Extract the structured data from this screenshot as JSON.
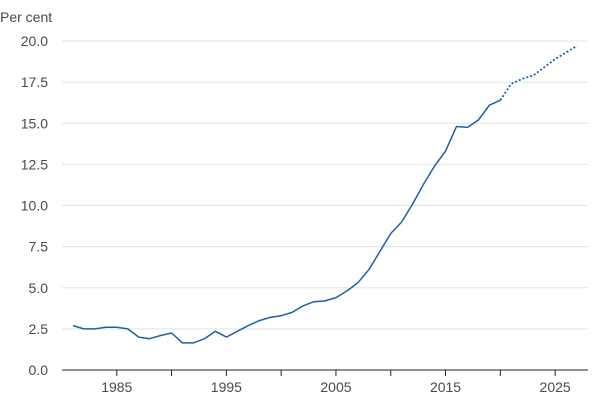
{
  "chart_data": {
    "type": "line",
    "ylabel": "Per cent",
    "ylim": [
      0,
      20
    ],
    "xlim": [
      1980,
      2028
    ],
    "yticks": [
      "0.0",
      "2.5",
      "5.0",
      "7.5",
      "10.0",
      "12.5",
      "15.0",
      "17.5",
      "20.0"
    ],
    "xticks": [
      "1985",
      "1995",
      "2005",
      "2015",
      "2025"
    ],
    "grid": true,
    "series": [
      {
        "style": "solid",
        "color": "#1f5fa8",
        "x": [
          1981,
          1982,
          1983,
          1984,
          1985,
          1986,
          1987,
          1988,
          1989,
          1990,
          1991,
          1992,
          1993,
          1994,
          1995,
          1996,
          1997,
          1998,
          1999,
          2000,
          2001,
          2002,
          2003,
          2004,
          2005,
          2006,
          2007,
          2008,
          2009,
          2010,
          2011,
          2012,
          2013,
          2014,
          2015,
          2016,
          2017,
          2018,
          2019,
          2020
        ],
        "y": [
          2.7,
          2.5,
          2.5,
          2.6,
          2.6,
          2.5,
          2.0,
          1.9,
          2.1,
          2.25,
          1.65,
          1.65,
          1.9,
          2.35,
          2.0,
          2.35,
          2.7,
          3.0,
          3.2,
          3.3,
          3.5,
          3.9,
          4.15,
          4.2,
          4.4,
          4.8,
          5.3,
          6.1,
          7.2,
          8.3,
          9.0,
          10.1,
          11.3,
          12.4,
          13.3,
          14.8,
          14.75,
          15.2,
          16.1,
          16.4
        ]
      },
      {
        "style": "dotted",
        "color": "#1f5fa8",
        "x": [
          2020,
          2021,
          2022,
          2023,
          2024,
          2025,
          2026,
          2027
        ],
        "y": [
          16.4,
          17.4,
          17.7,
          17.9,
          18.4,
          18.9,
          19.3,
          19.7
        ]
      }
    ]
  }
}
